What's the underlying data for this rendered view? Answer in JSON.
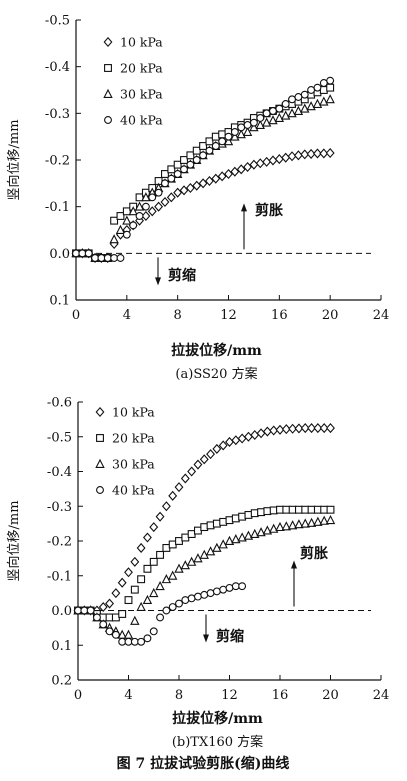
{
  "caption": "图 7  拉拔试验剪胀(缩)曲线",
  "chart_data": [
    {
      "type": "scatter",
      "subtitle": "(a)SS20 方案",
      "xlabel": "拉拔位移/mm",
      "ylabel": "竖向位移/mm",
      "xlim": [
        0,
        24
      ],
      "ylim": [
        0.1,
        -0.5
      ],
      "y_inverted": true,
      "xticks": [
        "0",
        "4",
        "8",
        "12",
        "16",
        "20",
        "24"
      ],
      "yticks": [
        "-0.5",
        "-0.4",
        "-0.3",
        "-0.2",
        "-0.1",
        "0.0",
        "0.1"
      ],
      "annotations": {
        "dilation": "剪胀",
        "contraction": "剪缩"
      },
      "series": [
        {
          "name": "10 kPa",
          "marker": "diamond",
          "x": [
            0,
            0.5,
            1,
            1.5,
            2,
            2.5,
            3,
            3.5,
            4,
            4.5,
            5,
            5.5,
            6,
            6.5,
            7,
            7.5,
            8,
            8.5,
            9,
            9.5,
            10,
            10.5,
            11,
            11.5,
            12,
            12.5,
            13,
            13.5,
            14,
            14.5,
            15,
            15.5,
            16,
            16.5,
            17,
            17.5,
            18,
            18.5,
            19,
            19.5,
            20
          ],
          "y": [
            0,
            0,
            0,
            0.01,
            0.01,
            0.01,
            -0.02,
            -0.04,
            -0.05,
            -0.06,
            -0.07,
            -0.08,
            -0.09,
            -0.1,
            -0.11,
            -0.12,
            -0.13,
            -0.135,
            -0.14,
            -0.145,
            -0.15,
            -0.155,
            -0.16,
            -0.165,
            -0.17,
            -0.175,
            -0.18,
            -0.185,
            -0.19,
            -0.193,
            -0.196,
            -0.199,
            -0.202,
            -0.205,
            -0.208,
            -0.21,
            -0.212,
            -0.213,
            -0.214,
            -0.214,
            -0.215
          ]
        },
        {
          "name": "20 kPa",
          "marker": "square",
          "x": [
            0,
            0.5,
            1,
            1.5,
            2,
            2.5,
            3,
            3.5,
            4,
            4.5,
            5,
            5.5,
            6,
            6.5,
            7,
            7.5,
            8,
            8.5,
            9,
            9.5,
            10,
            10.5,
            11,
            11.5,
            12,
            12.5,
            13,
            13.5,
            14,
            14.5,
            15,
            15.5,
            16,
            16.5,
            17,
            17.5,
            18,
            18.5,
            19,
            19.5,
            20
          ],
          "y": [
            0,
            0,
            0,
            0.01,
            0.01,
            0.01,
            -0.07,
            -0.08,
            -0.09,
            -0.1,
            -0.12,
            -0.13,
            -0.14,
            -0.155,
            -0.17,
            -0.18,
            -0.19,
            -0.2,
            -0.21,
            -0.22,
            -0.23,
            -0.24,
            -0.25,
            -0.255,
            -0.26,
            -0.27,
            -0.275,
            -0.28,
            -0.29,
            -0.295,
            -0.3,
            -0.305,
            -0.31,
            -0.315,
            -0.32,
            -0.325,
            -0.33,
            -0.34,
            -0.345,
            -0.35,
            -0.355
          ]
        },
        {
          "name": "30 kPa",
          "marker": "triangle",
          "x": [
            0,
            0.5,
            1,
            1.5,
            2,
            2.5,
            3,
            3.5,
            4,
            4.5,
            5,
            5.5,
            6,
            6.5,
            7,
            7.5,
            8,
            8.5,
            9,
            9.5,
            10,
            10.5,
            11,
            11.5,
            12,
            12.5,
            13,
            13.5,
            14,
            14.5,
            15,
            15.5,
            16,
            16.5,
            17,
            17.5,
            18,
            18.5,
            19,
            19.5,
            20
          ],
          "y": [
            0,
            0,
            0,
            0.01,
            0.01,
            0.01,
            -0.03,
            -0.05,
            -0.07,
            -0.09,
            -0.1,
            -0.12,
            -0.13,
            -0.14,
            -0.15,
            -0.16,
            -0.17,
            -0.18,
            -0.19,
            -0.2,
            -0.21,
            -0.22,
            -0.23,
            -0.235,
            -0.24,
            -0.25,
            -0.255,
            -0.26,
            -0.27,
            -0.275,
            -0.28,
            -0.285,
            -0.29,
            -0.295,
            -0.3,
            -0.305,
            -0.31,
            -0.315,
            -0.32,
            -0.325,
            -0.33
          ]
        },
        {
          "name": "40 kPa",
          "marker": "circle",
          "x": [
            0,
            0.5,
            1,
            1.5,
            2,
            2.5,
            3,
            3.5,
            4,
            4.5,
            5,
            5.5,
            6,
            6.5,
            7,
            7.5,
            8,
            8.5,
            9,
            9.5,
            10,
            10.5,
            11,
            11.5,
            12,
            12.5,
            13,
            13.5,
            14,
            14.5,
            15,
            15.5,
            16,
            16.5,
            17,
            17.5,
            18,
            18.5,
            19,
            19.5,
            20
          ],
          "y": [
            0,
            0,
            0,
            0.01,
            0.01,
            0.01,
            0.01,
            0.01,
            -0.04,
            -0.06,
            -0.08,
            -0.1,
            -0.12,
            -0.13,
            -0.15,
            -0.16,
            -0.17,
            -0.18,
            -0.19,
            -0.2,
            -0.21,
            -0.22,
            -0.23,
            -0.24,
            -0.25,
            -0.26,
            -0.27,
            -0.275,
            -0.28,
            -0.29,
            -0.3,
            -0.305,
            -0.31,
            -0.32,
            -0.33,
            -0.335,
            -0.34,
            -0.35,
            -0.355,
            -0.365,
            -0.37
          ]
        }
      ]
    },
    {
      "type": "scatter",
      "subtitle": "(b)TX160 方案",
      "xlabel": "拉拔位移/mm",
      "ylabel": "竖向位移/mm",
      "xlim": [
        0,
        24
      ],
      "ylim": [
        0.2,
        -0.6
      ],
      "y_inverted": true,
      "xticks": [
        "0",
        "4",
        "8",
        "12",
        "16",
        "20",
        "24"
      ],
      "yticks": [
        "-0.6",
        "-0.5",
        "-0.4",
        "-0.3",
        "-0.2",
        "-0.1",
        "0.0",
        "0.1",
        "0.2"
      ],
      "annotations": {
        "dilation": "剪胀",
        "contraction": "剪缩"
      },
      "series": [
        {
          "name": "10 kPa",
          "marker": "diamond",
          "x": [
            0,
            0.5,
            1,
            1.5,
            2,
            2.5,
            3,
            3.5,
            4,
            4.5,
            5,
            5.5,
            6,
            6.5,
            7,
            7.5,
            8,
            8.5,
            9,
            9.5,
            10,
            10.5,
            11,
            11.5,
            12,
            12.5,
            13,
            13.5,
            14,
            14.5,
            15,
            15.5,
            16,
            16.5,
            17,
            17.5,
            18,
            18.5,
            19,
            19.5,
            20
          ],
          "y": [
            0,
            0,
            0,
            0,
            -0.01,
            -0.02,
            -0.05,
            -0.08,
            -0.11,
            -0.14,
            -0.18,
            -0.21,
            -0.24,
            -0.27,
            -0.3,
            -0.33,
            -0.355,
            -0.38,
            -0.4,
            -0.42,
            -0.435,
            -0.45,
            -0.465,
            -0.475,
            -0.485,
            -0.49,
            -0.495,
            -0.5,
            -0.505,
            -0.51,
            -0.515,
            -0.518,
            -0.52,
            -0.522,
            -0.523,
            -0.524,
            -0.525,
            -0.525,
            -0.525,
            -0.525,
            -0.525
          ]
        },
        {
          "name": "20 kPa",
          "marker": "square",
          "x": [
            0,
            0.5,
            1,
            1.5,
            2,
            2.5,
            3,
            3.5,
            4,
            4.5,
            5,
            5.5,
            6,
            6.5,
            7,
            7.5,
            8,
            8.5,
            9,
            9.5,
            10,
            10.5,
            11,
            11.5,
            12,
            12.5,
            13,
            13.5,
            14,
            14.5,
            15,
            15.5,
            16,
            16.5,
            17,
            17.5,
            18,
            18.5,
            19,
            19.5,
            20
          ],
          "y": [
            0,
            0,
            0,
            0.01,
            0.02,
            0.02,
            0.02,
            0.01,
            -0.03,
            -0.06,
            -0.09,
            -0.12,
            -0.14,
            -0.16,
            -0.18,
            -0.19,
            -0.2,
            -0.21,
            -0.22,
            -0.23,
            -0.24,
            -0.245,
            -0.25,
            -0.255,
            -0.26,
            -0.265,
            -0.27,
            -0.275,
            -0.28,
            -0.283,
            -0.286,
            -0.288,
            -0.29,
            -0.29,
            -0.29,
            -0.29,
            -0.29,
            -0.29,
            -0.29,
            -0.29,
            -0.29
          ]
        },
        {
          "name": "30 kPa",
          "marker": "triangle",
          "x": [
            0,
            0.5,
            1,
            1.5,
            2,
            2.5,
            3,
            3.5,
            4,
            4.5,
            5,
            5.5,
            6,
            6.5,
            7,
            7.5,
            8,
            8.5,
            9,
            9.5,
            10,
            10.5,
            11,
            11.5,
            12,
            12.5,
            13,
            13.5,
            14,
            14.5,
            15,
            15.5,
            16,
            16.5,
            17,
            17.5,
            18,
            18.5,
            19,
            19.5,
            20
          ],
          "y": [
            0,
            0,
            0,
            0.02,
            0.04,
            0.05,
            0.06,
            0.07,
            0.07,
            0.03,
            -0.01,
            -0.03,
            -0.05,
            -0.07,
            -0.09,
            -0.1,
            -0.12,
            -0.13,
            -0.14,
            -0.15,
            -0.16,
            -0.17,
            -0.18,
            -0.19,
            -0.2,
            -0.205,
            -0.21,
            -0.215,
            -0.22,
            -0.225,
            -0.23,
            -0.235,
            -0.24,
            -0.242,
            -0.245,
            -0.248,
            -0.25,
            -0.252,
            -0.255,
            -0.258,
            -0.26
          ]
        },
        {
          "name": "40 kPa",
          "marker": "circle",
          "x": [
            0,
            0.5,
            1,
            1.5,
            2,
            2.5,
            3,
            3.5,
            4,
            4.5,
            5,
            5.5,
            6,
            6.5,
            7,
            7.5,
            8,
            8.5,
            9,
            9.5,
            10,
            10.5,
            11,
            11.5,
            12,
            12.5,
            13
          ],
          "y": [
            0,
            0,
            0,
            0.02,
            0.04,
            0.06,
            0.07,
            0.09,
            0.09,
            0.09,
            0.09,
            0.08,
            0.06,
            0.02,
            0,
            -0.01,
            -0.02,
            -0.03,
            -0.035,
            -0.04,
            -0.045,
            -0.05,
            -0.055,
            -0.06,
            -0.065,
            -0.07,
            -0.07
          ]
        }
      ]
    }
  ]
}
